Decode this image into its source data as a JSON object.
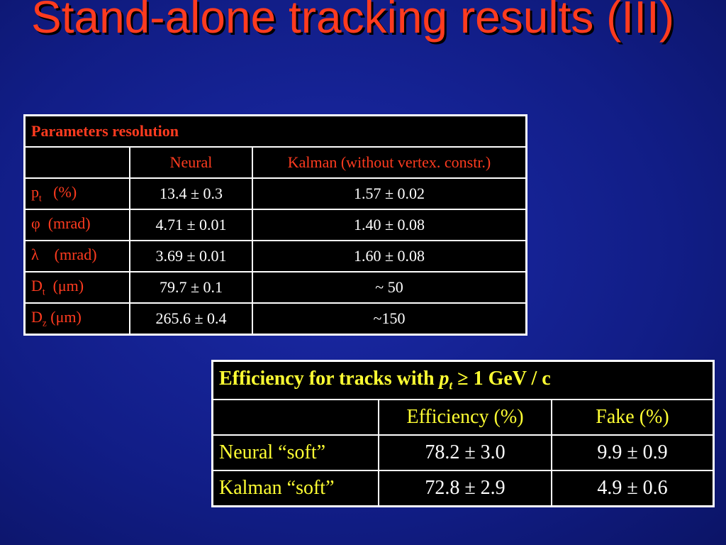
{
  "slide": {
    "title": "Stand-alone tracking results (III)"
  },
  "resolution_table": {
    "header": "Parameters resolution",
    "columns": [
      "",
      "Neural",
      "Kalman (without vertex. constr.)"
    ],
    "rows": [
      {
        "param": "p",
        "sub": "t",
        "unit": "(%)",
        "neural": "13.4 ± 0.3",
        "kalman": "1.57 ± 0.02"
      },
      {
        "param": "φ",
        "sub": "",
        "unit": "(mrad)",
        "neural": "4.71 ± 0.01",
        "kalman": "1.40 ± 0.08"
      },
      {
        "param": "λ",
        "sub": "",
        "unit": "(mrad)",
        "neural": "3.69 ± 0.01",
        "kalman": "1.60 ± 0.08"
      },
      {
        "param": "D",
        "sub": "t",
        "unit": "(μm)",
        "neural": "79.7 ± 0.1",
        "kalman": "~ 50"
      },
      {
        "param": "D",
        "sub": "z",
        "unit": "(μm)",
        "neural": "265.6 ± 0.4",
        "kalman": "~150"
      }
    ]
  },
  "efficiency_table": {
    "header_prefix": "Efficiency for tracks with ",
    "header_var": "p",
    "header_sub": "t",
    "header_suffix": " ≥ 1 GeV / c",
    "columns": [
      "",
      "Efficiency (%)",
      "Fake (%)"
    ],
    "rows": [
      {
        "method": "Neural “soft”",
        "efficiency": "78.2 ± 3.0",
        "fake": "9.9 ± 0.9"
      },
      {
        "method": "Kalman “soft”",
        "efficiency": "72.8 ± 2.9",
        "fake": "4.9 ± 0.6"
      }
    ]
  }
}
